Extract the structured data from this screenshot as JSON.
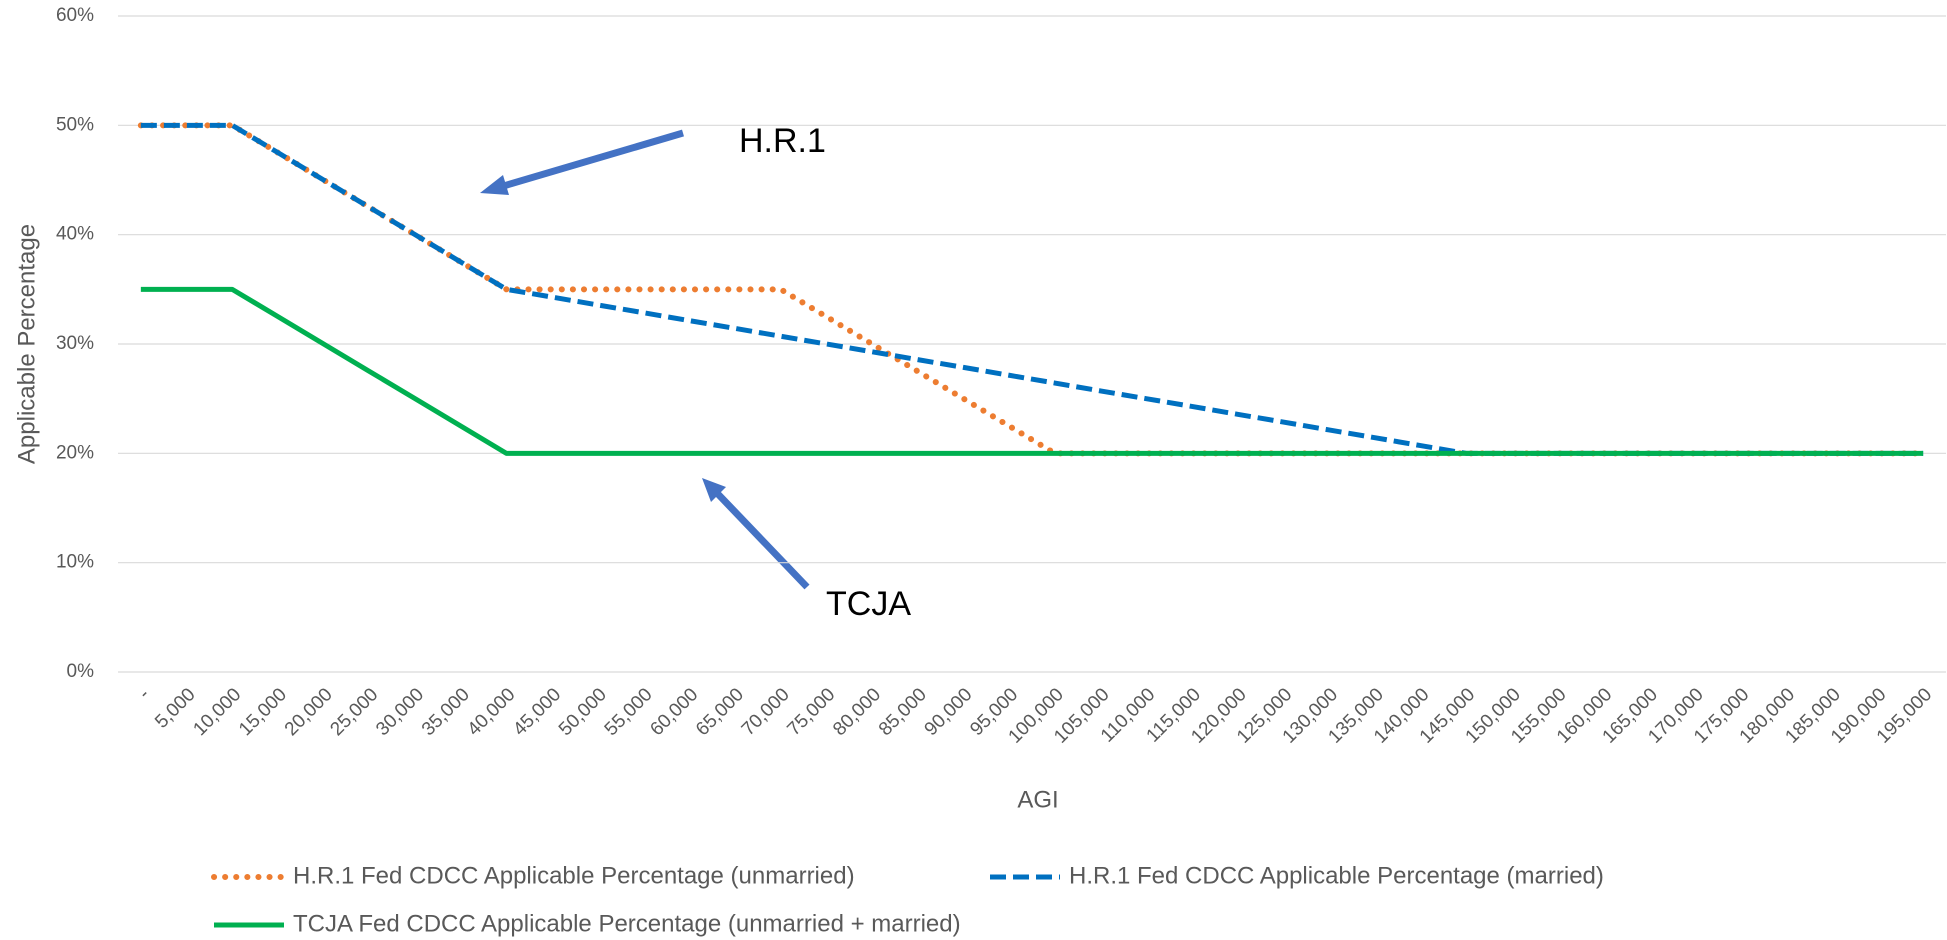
{
  "chart_data": {
    "type": "line",
    "ylabel": "Applicable Percentage",
    "xlabel": "AGI",
    "categories": [
      "-",
      "5,000",
      "10,000",
      "15,000",
      "20,000",
      "25,000",
      "30,000",
      "35,000",
      "40,000",
      "45,000",
      "50,000",
      "55,000",
      "60,000",
      "65,000",
      "70,000",
      "75,000",
      "80,000",
      "85,000",
      "90,000",
      "95,000",
      "100,000",
      "105,000",
      "110,000",
      "115,000",
      "120,000",
      "125,000",
      "130,000",
      "135,000",
      "140,000",
      "145,000",
      "150,000",
      "155,000",
      "160,000",
      "165,000",
      "170,000",
      "175,000",
      "180,000",
      "185,000",
      "190,000",
      "195,000"
    ],
    "series": [
      {
        "name": "H.R.1 Fed CDCC Applicable Percentage (unmarried)",
        "color": "#ed7d31",
        "dash": "dotted",
        "values": [
          50,
          50,
          50,
          47.5,
          45,
          42.5,
          40,
          37.5,
          35,
          35,
          35,
          35,
          35,
          35,
          35,
          32.5,
          30,
          27.5,
          25,
          22.5,
          20,
          20,
          20,
          20,
          20,
          20,
          20,
          20,
          20,
          20,
          20,
          20,
          20,
          20,
          20,
          20,
          20,
          20,
          20,
          20
        ]
      },
      {
        "name": "H.R.1 Fed CDCC Applicable Percentage (married)",
        "color": "#0070c0",
        "dash": "dashed",
        "values": [
          50,
          50,
          50,
          47.5,
          45,
          42.5,
          40,
          37.5,
          35,
          34.29,
          33.57,
          32.86,
          32.14,
          31.43,
          30.71,
          30,
          29.29,
          28.57,
          27.86,
          27.14,
          26.43,
          25.71,
          25,
          24.29,
          23.57,
          22.86,
          22.14,
          21.43,
          20.71,
          20,
          20,
          20,
          20,
          20,
          20,
          20,
          20,
          20,
          20,
          20
        ]
      },
      {
        "name": "TCJA Fed CDCC Applicable Percentage (unmarried + married)",
        "color": "#00b050",
        "dash": "solid",
        "values": [
          35,
          35,
          35,
          32.5,
          30,
          27.5,
          25,
          22.5,
          20,
          20,
          20,
          20,
          20,
          20,
          20,
          20,
          20,
          20,
          20,
          20,
          20,
          20,
          20,
          20,
          20,
          20,
          20,
          20,
          20,
          20,
          20,
          20,
          20,
          20,
          20,
          20,
          20,
          20,
          20,
          20
        ]
      }
    ],
    "ylim": [
      0,
      60
    ],
    "yticks": [
      {
        "value": 0,
        "label": "0%"
      },
      {
        "value": 10,
        "label": "10%"
      },
      {
        "value": 20,
        "label": "20%"
      },
      {
        "value": 30,
        "label": "30%"
      },
      {
        "value": 40,
        "label": "40%"
      },
      {
        "value": 50,
        "label": "50%"
      },
      {
        "value": 60,
        "label": "60%"
      }
    ],
    "grid": true,
    "legend": "bottom",
    "annotations": [
      "H.R.1",
      "TCJA"
    ]
  }
}
